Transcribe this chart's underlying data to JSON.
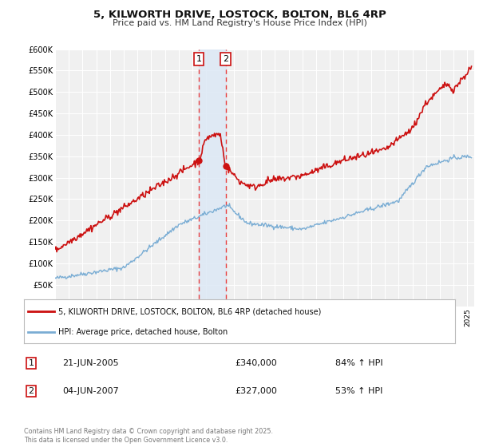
{
  "title": "5, KILWORTH DRIVE, LOSTOCK, BOLTON, BL6 4RP",
  "subtitle": "Price paid vs. HM Land Registry's House Price Index (HPI)",
  "ylim": [
    0,
    600000
  ],
  "xlim_start": 1995.0,
  "xlim_end": 2025.5,
  "background_color": "#ffffff",
  "plot_bg_color": "#f0f0f0",
  "grid_color": "#ffffff",
  "sale1_date": 2005.47,
  "sale1_price": 340000,
  "sale2_date": 2007.42,
  "sale2_price": 327000,
  "sale_line_color": "#e84040",
  "sale_fill_color": "#dce8f5",
  "legend_line1": "5, KILWORTH DRIVE, LOSTOCK, BOLTON, BL6 4RP (detached house)",
  "legend_line2": "HPI: Average price, detached house, Bolton",
  "hpi_color": "#7aadd4",
  "property_color": "#cc1111",
  "footnote": "Contains HM Land Registry data © Crown copyright and database right 2025.\nThis data is licensed under the Open Government Licence v3.0.",
  "table_rows": [
    {
      "num": "1",
      "date": "21-JUN-2005",
      "price": "£340,000",
      "hpi": "84% ↑ HPI"
    },
    {
      "num": "2",
      "date": "04-JUN-2007",
      "price": "£327,000",
      "hpi": "53% ↑ HPI"
    }
  ]
}
